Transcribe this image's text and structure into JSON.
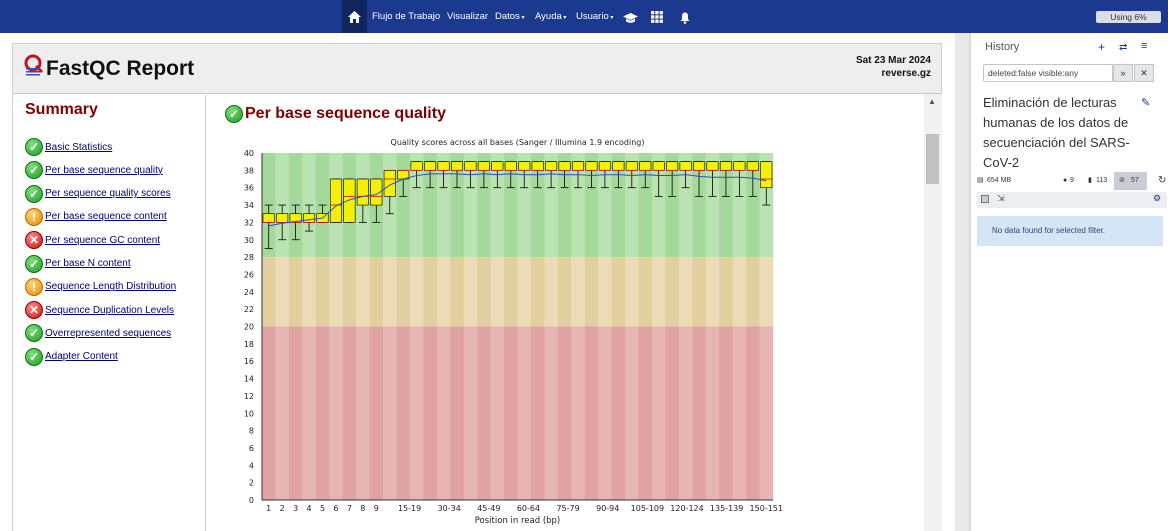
{
  "topbar": {
    "items": [
      "Flujo de Trabajo",
      "Visualizar",
      "Datos",
      "Ayuda",
      "Usuario"
    ],
    "usage": "Using 6%"
  },
  "report": {
    "title": "FastQC Report",
    "date": "Sat 23 Mar 2024",
    "file": "reverse.gz"
  },
  "summary": {
    "title": "Summary",
    "items": [
      {
        "label": "Basic Statistics",
        "status": "pass"
      },
      {
        "label": "Per base sequence quality",
        "status": "pass"
      },
      {
        "label": "Per sequence quality scores",
        "status": "pass"
      },
      {
        "label": "Per base sequence content",
        "status": "warn"
      },
      {
        "label": "Per sequence GC content",
        "status": "fail"
      },
      {
        "label": "Per base N content",
        "status": "pass"
      },
      {
        "label": "Sequence Length Distribution",
        "status": "warn"
      },
      {
        "label": "Sequence Duplication Levels",
        "status": "fail"
      },
      {
        "label": "Overrepresented sequences",
        "status": "pass"
      },
      {
        "label": "Adapter Content",
        "status": "pass"
      }
    ]
  },
  "module": {
    "title": "Per base sequence quality"
  },
  "chart_data": {
    "type": "box",
    "title": "Quality scores across all bases (Sanger / Illumina 1.9 encoding)",
    "xlabel": "Position in read (bp)",
    "ylabel": "",
    "ylim": [
      0,
      40
    ],
    "yticks": [
      0,
      2,
      4,
      6,
      8,
      10,
      12,
      14,
      16,
      18,
      20,
      22,
      24,
      26,
      28,
      30,
      32,
      34,
      36,
      38,
      40
    ],
    "zones": [
      {
        "from": 28,
        "to": 40,
        "color": "#b9e3b0"
      },
      {
        "from": 20,
        "to": 28,
        "color": "#ecdcb6"
      },
      {
        "from": 0,
        "to": 20,
        "color": "#e8b5b5"
      }
    ],
    "categories": [
      "1",
      "2",
      "3",
      "4",
      "5",
      "6",
      "7",
      "8",
      "9",
      "10-14",
      "15-19",
      "20-24",
      "25-29",
      "30-34",
      "35-39",
      "40-44",
      "45-49",
      "50-54",
      "55-59",
      "60-64",
      "65-69",
      "70-74",
      "75-79",
      "80-84",
      "85-89",
      "90-94",
      "95-99",
      "100-104",
      "105-109",
      "110-114",
      "115-119",
      "120-124",
      "125-129",
      "130-134",
      "135-139",
      "140-144",
      "145-149",
      "150-151"
    ],
    "tick_labels": [
      "1",
      "2",
      "3",
      "4",
      "5",
      "6",
      "7",
      "8",
      "9",
      "",
      "15-19",
      "",
      "30-34",
      "",
      "45-49",
      "",
      "60-64",
      "",
      "75-79",
      "",
      "90-94",
      "",
      "105-109",
      "",
      "120-124",
      "",
      "135-139",
      "",
      "150-151"
    ],
    "boxes": [
      {
        "q1": 32,
        "q3": 33,
        "med": 32,
        "lw": 29,
        "hw": 34,
        "mean": 31.6
      },
      {
        "q1": 32,
        "q3": 33,
        "med": 32,
        "lw": 30,
        "hw": 34,
        "mean": 31.9
      },
      {
        "q1": 32,
        "q3": 33,
        "med": 32,
        "lw": 30,
        "hw": 34,
        "mean": 32.1
      },
      {
        "q1": 32,
        "q3": 33,
        "med": 32,
        "lw": 31,
        "hw": 34,
        "mean": 32.3
      },
      {
        "q1": 32,
        "q3": 33,
        "med": 32,
        "lw": 32,
        "hw": 34,
        "mean": 32.5
      },
      {
        "q1": 32,
        "q3": 37,
        "med": 34,
        "lw": 32,
        "hw": 37,
        "mean": 33.9
      },
      {
        "q1": 32,
        "q3": 37,
        "med": 35,
        "lw": 32,
        "hw": 37,
        "mean": 34.6
      },
      {
        "q1": 34,
        "q3": 37,
        "med": 35,
        "lw": 32,
        "hw": 37,
        "mean": 35.0
      },
      {
        "q1": 34,
        "q3": 37,
        "med": 35,
        "lw": 32,
        "hw": 37,
        "mean": 35.2
      },
      {
        "q1": 35,
        "q3": 38,
        "med": 37,
        "lw": 33,
        "hw": 38,
        "mean": 36.3
      },
      {
        "q1": 37,
        "q3": 38,
        "med": 38,
        "lw": 35,
        "hw": 38,
        "mean": 37.0
      },
      {
        "q1": 38,
        "q3": 39,
        "med": 38,
        "lw": 36,
        "hw": 39,
        "mean": 37.4
      },
      {
        "q1": 38,
        "q3": 39,
        "med": 38,
        "lw": 36,
        "hw": 39,
        "mean": 37.6
      },
      {
        "q1": 38,
        "q3": 39,
        "med": 38,
        "lw": 36,
        "hw": 39,
        "mean": 37.6
      },
      {
        "q1": 38,
        "q3": 39,
        "med": 38,
        "lw": 36,
        "hw": 39,
        "mean": 37.6
      },
      {
        "q1": 38,
        "q3": 39,
        "med": 38,
        "lw": 36,
        "hw": 39,
        "mean": 37.5
      },
      {
        "q1": 38,
        "q3": 39,
        "med": 38,
        "lw": 36,
        "hw": 39,
        "mean": 37.6
      },
      {
        "q1": 38,
        "q3": 39,
        "med": 38,
        "lw": 36,
        "hw": 39,
        "mean": 37.5
      },
      {
        "q1": 38,
        "q3": 39,
        "med": 38,
        "lw": 36,
        "hw": 39,
        "mean": 37.6
      },
      {
        "q1": 38,
        "q3": 39,
        "med": 38,
        "lw": 36,
        "hw": 39,
        "mean": 37.5
      },
      {
        "q1": 38,
        "q3": 39,
        "med": 38,
        "lw": 36,
        "hw": 39,
        "mean": 37.5
      },
      {
        "q1": 38,
        "q3": 39,
        "med": 38,
        "lw": 36,
        "hw": 39,
        "mean": 37.6
      },
      {
        "q1": 38,
        "q3": 39,
        "med": 38,
        "lw": 36,
        "hw": 39,
        "mean": 37.5
      },
      {
        "q1": 38,
        "q3": 39,
        "med": 38,
        "lw": 36,
        "hw": 39,
        "mean": 37.5
      },
      {
        "q1": 38,
        "q3": 39,
        "med": 38,
        "lw": 36,
        "hw": 39,
        "mean": 37.4
      },
      {
        "q1": 38,
        "q3": 39,
        "med": 38,
        "lw": 36,
        "hw": 39,
        "mean": 37.5
      },
      {
        "q1": 38,
        "q3": 39,
        "med": 38,
        "lw": 36,
        "hw": 39,
        "mean": 37.5
      },
      {
        "q1": 38,
        "q3": 39,
        "med": 38,
        "lw": 36,
        "hw": 39,
        "mean": 37.4
      },
      {
        "q1": 38,
        "q3": 39,
        "med": 38,
        "lw": 36,
        "hw": 39,
        "mean": 37.5
      },
      {
        "q1": 38,
        "q3": 39,
        "med": 38,
        "lw": 35,
        "hw": 39,
        "mean": 37.4
      },
      {
        "q1": 38,
        "q3": 39,
        "med": 38,
        "lw": 35,
        "hw": 39,
        "mean": 37.4
      },
      {
        "q1": 38,
        "q3": 39,
        "med": 38,
        "lw": 36,
        "hw": 39,
        "mean": 37.5
      },
      {
        "q1": 38,
        "q3": 39,
        "med": 38,
        "lw": 35,
        "hw": 39,
        "mean": 37.3
      },
      {
        "q1": 38,
        "q3": 39,
        "med": 38,
        "lw": 35,
        "hw": 39,
        "mean": 37.2
      },
      {
        "q1": 38,
        "q3": 39,
        "med": 38,
        "lw": 35,
        "hw": 39,
        "mean": 37.2
      },
      {
        "q1": 38,
        "q3": 39,
        "med": 38,
        "lw": 35,
        "hw": 39,
        "mean": 37.2
      },
      {
        "q1": 38,
        "q3": 39,
        "med": 38,
        "lw": 35,
        "hw": 39,
        "mean": 37.1
      },
      {
        "q1": 36,
        "q3": 39,
        "med": 37,
        "lw": 34,
        "hw": 39,
        "mean": 36.8
      }
    ],
    "grid": false,
    "colors": {
      "box": "#f4f000",
      "mean_line": "#2a4fc2",
      "whisker": "#000000"
    }
  },
  "history": {
    "title": "History",
    "filter": "deleted:false visible:any",
    "name": "Eliminación de lecturas humanas de los datos de secuenciación del SARS-CoV-2",
    "size": "654 MB",
    "shown": "9",
    "deleted": "113",
    "hidden": "57",
    "nodata": "No data found for selected filter."
  },
  "colors": {
    "topbar": "#1b3a8f",
    "accent": "#800000",
    "link": "#000080"
  }
}
